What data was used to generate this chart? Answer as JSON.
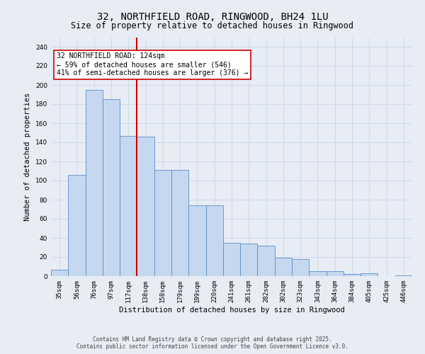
{
  "title": "32, NORTHFIELD ROAD, RINGWOOD, BH24 1LU",
  "subtitle": "Size of property relative to detached houses in Ringwood",
  "xlabel": "Distribution of detached houses by size in Ringwood",
  "ylabel": "Number of detached properties",
  "categories": [
    "35sqm",
    "56sqm",
    "76sqm",
    "97sqm",
    "117sqm",
    "138sqm",
    "158sqm",
    "179sqm",
    "199sqm",
    "220sqm",
    "241sqm",
    "261sqm",
    "282sqm",
    "302sqm",
    "323sqm",
    "343sqm",
    "364sqm",
    "384sqm",
    "405sqm",
    "425sqm",
    "446sqm"
  ],
  "values": [
    7,
    106,
    195,
    185,
    147,
    146,
    111,
    111,
    74,
    74,
    35,
    34,
    32,
    19,
    18,
    5,
    5,
    2,
    3,
    0,
    1
  ],
  "bar_color": "#c5d8f0",
  "bar_edge_color": "#5b8fc9",
  "background_color": "#e8ecf5",
  "vline_x": 4,
  "vline_color": "#cc0000",
  "annotation_text": "32 NORTHFIELD ROAD: 124sqm\n← 59% of detached houses are smaller (546)\n41% of semi-detached houses are larger (376) →",
  "annotation_box_color": "#ffffff",
  "annotation_box_edge": "#cc0000",
  "ylim": [
    0,
    250
  ],
  "yticks": [
    0,
    20,
    40,
    60,
    80,
    100,
    120,
    140,
    160,
    180,
    200,
    220,
    240
  ],
  "footer": "Contains HM Land Registry data © Crown copyright and database right 2025.\nContains public sector information licensed under the Open Government Licence v3.0.",
  "grid_color": "#d0d8e8",
  "title_fontsize": 10,
  "subtitle_fontsize": 8.5,
  "axis_label_fontsize": 7.5,
  "tick_fontsize": 6.5,
  "annotation_fontsize": 7,
  "footer_fontsize": 5.5
}
